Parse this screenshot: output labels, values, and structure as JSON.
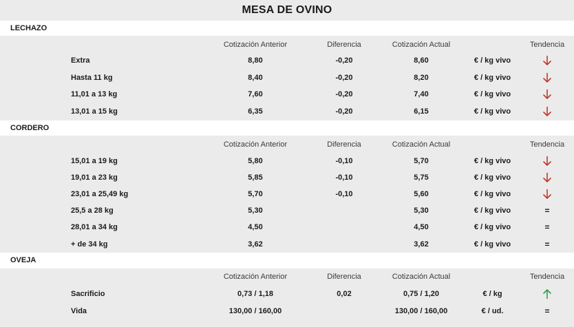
{
  "title": "MESA DE OVINO",
  "colors": {
    "down": "#c0392b",
    "up": "#2e9e4f",
    "background": "#ebebeb"
  },
  "sections": [
    {
      "name": "LECHAZO",
      "headers": {
        "prev": "Cotización Anterior",
        "diff": "Diferencia",
        "curr": "Cotización Actual",
        "trend": "Tendencia"
      },
      "rows": [
        {
          "label": "Extra",
          "prev": "8,80",
          "diff": "-0,20",
          "curr": "8,60",
          "unit": "€ / kg vivo",
          "trend": "down"
        },
        {
          "label": "Hasta 11 kg",
          "prev": "8,40",
          "diff": "-0,20",
          "curr": "8,20",
          "unit": "€ / kg vivo",
          "trend": "down"
        },
        {
          "label": "11,01 a 13 kg",
          "prev": "7,60",
          "diff": "-0,20",
          "curr": "7,40",
          "unit": "€ / kg vivo",
          "trend": "down"
        },
        {
          "label": "13,01 a 15 kg",
          "prev": "6,35",
          "diff": "-0,20",
          "curr": "6,15",
          "unit": "€ / kg vivo",
          "trend": "down"
        }
      ]
    },
    {
      "name": "CORDERO",
      "headers": {
        "prev": "Cotización Anterior",
        "diff": "Diferencia",
        "curr": "Cotización Actual",
        "trend": "Tendencia"
      },
      "rows": [
        {
          "label": "15,01 a 19 kg",
          "prev": "5,80",
          "diff": "-0,10",
          "curr": "5,70",
          "unit": "€ / kg vivo",
          "trend": "down"
        },
        {
          "label": "19,01 a 23 kg",
          "prev": "5,85",
          "diff": "-0,10",
          "curr": "5,75",
          "unit": "€ / kg vivo",
          "trend": "down"
        },
        {
          "label": "23,01 a 25,49 kg",
          "prev": "5,70",
          "diff": "-0,10",
          "curr": "5,60",
          "unit": "€ / kg vivo",
          "trend": "down"
        },
        {
          "label": "25,5 a 28 kg",
          "prev": "5,30",
          "diff": "",
          "curr": "5,30",
          "unit": "€ / kg vivo",
          "trend": "equal",
          "trend_symbol": "="
        },
        {
          "label": "28,01 a 34 kg",
          "prev": "4,50",
          "diff": "",
          "curr": "4,50",
          "unit": "€ / kg vivo",
          "trend": "equal",
          "trend_symbol": "="
        },
        {
          "label": "+ de 34 kg",
          "prev": "3,62",
          "diff": "",
          "curr": "3,62",
          "unit": "€ / kg vivo",
          "trend": "equal",
          "trend_symbol": "="
        }
      ]
    },
    {
      "name": "OVEJA",
      "headers": {
        "prev": "Cotización Anterior",
        "diff": "Diferencia",
        "curr": "Cotización Actual",
        "trend": "Tendencia"
      },
      "rows": [
        {
          "label": "Sacrificio",
          "prev": "0,73 / 1,18",
          "diff": "0,02",
          "curr": "0,75 / 1,20",
          "unit": "€ / kg",
          "trend": "up"
        },
        {
          "label": "Vida",
          "prev": "130,00 / 160,00",
          "diff": "",
          "curr": "130,00 / 160,00",
          "unit": "€ / ud.",
          "trend": "equal",
          "trend_symbol": "="
        }
      ]
    }
  ]
}
